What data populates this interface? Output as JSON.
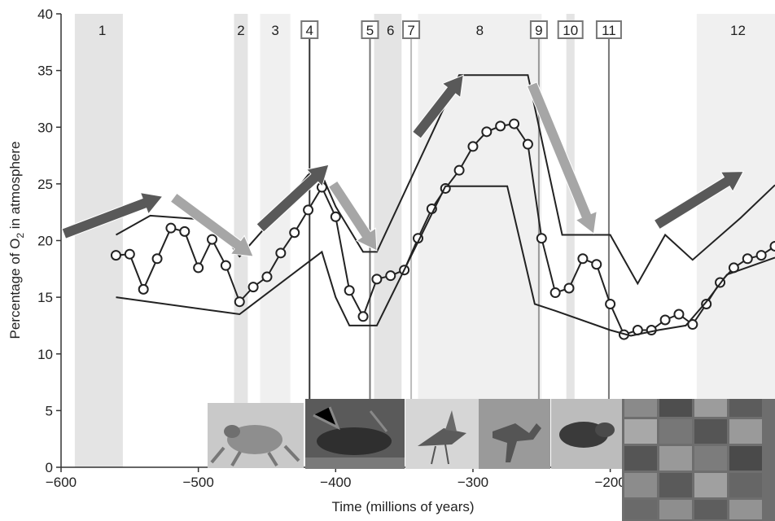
{
  "chart_data": {
    "type": "line",
    "title": "",
    "xlabel": "Time (millions of years)",
    "ylabel": "Percentage of O",
    "ylabel_subscript": "2",
    "ylabel_suffix": " in atmosphere",
    "xlim": [
      -600,
      -80
    ],
    "ylim": [
      0,
      40
    ],
    "x_ticks": [
      -600,
      -500,
      -400,
      -300,
      -200
    ],
    "y_ticks": [
      0,
      5,
      10,
      15,
      20,
      25,
      30,
      35,
      40
    ],
    "x_tick_labels": [
      "−600",
      "−500",
      "−400",
      "−300",
      "−200"
    ],
    "y_tick_labels": [
      "0",
      "5",
      "10",
      "15",
      "20",
      "25",
      "30",
      "35",
      "40"
    ],
    "grid": false,
    "colors": {
      "band": "#e4e4e4",
      "band_light": "#f0f0f0",
      "line": "#222222",
      "arrow_dark": "#595959",
      "arrow_light": "#a6a6a6",
      "marker_fill": "#ffffff"
    },
    "bands": [
      {
        "label": "1",
        "x0": -590,
        "x1": -555,
        "shade": "band"
      },
      {
        "label": "2",
        "x0": -474,
        "x1": -464,
        "shade": "band"
      },
      {
        "label": "3",
        "x0": -455,
        "x1": -433,
        "shade": "band_light"
      },
      {
        "label": "6",
        "x0": -372,
        "x1": -352,
        "shade": "band"
      },
      {
        "label": "8",
        "x0": -340,
        "x1": -250,
        "shade": "band_light"
      },
      {
        "label": "10",
        "x0": -232,
        "x1": -226,
        "shade": "band"
      },
      {
        "label": "12",
        "x0": -137,
        "x1": -80,
        "shade": "band_light"
      }
    ],
    "event_lines": [
      {
        "label": "4",
        "x": -419,
        "boxed": true,
        "color": "#333333"
      },
      {
        "label": "5",
        "x": -375,
        "boxed": true,
        "color": "#777777"
      },
      {
        "label": "7",
        "x": -345,
        "boxed": false,
        "color": "#bbbbbb"
      },
      {
        "label": "9",
        "x": -252,
        "boxed": true,
        "color": "#999999"
      },
      {
        "label": "11",
        "x": -201,
        "boxed": true,
        "color": "#777777"
      }
    ],
    "event_labels": [
      {
        "text": "1",
        "x": -570,
        "boxed": false
      },
      {
        "text": "2",
        "x": -469,
        "boxed": false
      },
      {
        "text": "3",
        "x": -444,
        "boxed": false
      },
      {
        "text": "4",
        "x": -419,
        "boxed": true
      },
      {
        "text": "5",
        "x": -375,
        "boxed": true
      },
      {
        "text": "6",
        "x": -360,
        "boxed": false
      },
      {
        "text": "7",
        "x": -345,
        "boxed": true
      },
      {
        "text": "8",
        "x": -295,
        "boxed": false
      },
      {
        "text": "9",
        "x": -252,
        "boxed": true
      },
      {
        "text": "10",
        "x": -229,
        "boxed": true
      },
      {
        "text": "11",
        "x": -201,
        "boxed": true
      },
      {
        "text": "12",
        "x": -107,
        "boxed": false
      }
    ],
    "series": [
      {
        "role": "mean",
        "marker": "circle",
        "x": [
          -560,
          -550,
          -540,
          -530,
          -520,
          -510,
          -500,
          -490,
          -480,
          -470,
          -460,
          -450,
          -440,
          -430,
          -420,
          -410,
          -400,
          -390,
          -380,
          -370,
          -360,
          -350,
          -340,
          -330,
          -320,
          -310,
          -300,
          -290,
          -280,
          -270,
          -260,
          -250,
          -240,
          -230,
          -220,
          -210,
          -200,
          -190,
          -180,
          -170,
          -160,
          -150,
          -140,
          -130,
          -120,
          -110,
          -100,
          -90,
          -80
        ],
        "y": [
          18.7,
          18.8,
          15.7,
          18.4,
          21.1,
          20.8,
          17.6,
          20.1,
          17.8,
          14.6,
          15.9,
          16.8,
          18.9,
          20.7,
          22.7,
          24.7,
          22.1,
          15.6,
          13.3,
          16.6,
          16.9,
          17.4,
          20.2,
          22.8,
          24.6,
          26.2,
          28.3,
          29.6,
          30.1,
          30.3,
          28.5,
          20.2,
          15.4,
          15.8,
          18.4,
          17.9,
          14.4,
          11.7,
          12.1,
          12.1,
          13.0,
          13.5,
          12.6,
          14.4,
          16.3,
          17.6,
          18.4,
          18.7,
          19.5
        ]
      },
      {
        "role": "upper",
        "x": [
          -560,
          -535,
          -490,
          -470,
          -445,
          -420,
          -410,
          -400,
          -380,
          -370,
          -310,
          -295,
          -260,
          -235,
          -210,
          -200,
          -180,
          -160,
          -140,
          -105,
          -80
        ],
        "y": [
          20.5,
          22.2,
          21.8,
          18.6,
          22.0,
          25.8,
          25.8,
          23.0,
          19.0,
          19.0,
          34.6,
          34.6,
          34.6,
          20.5,
          20.5,
          20.5,
          16.2,
          20.5,
          18.3,
          22.0,
          24.9
        ]
      },
      {
        "role": "lower",
        "x": [
          -560,
          -470,
          -410,
          -400,
          -390,
          -370,
          -320,
          -305,
          -290,
          -275,
          -255,
          -240,
          -200,
          -185,
          -165,
          -145,
          -130,
          -115,
          -80
        ],
        "y": [
          15.0,
          13.5,
          19.0,
          15.0,
          12.5,
          12.5,
          24.8,
          24.8,
          24.8,
          24.8,
          14.4,
          13.8,
          12.1,
          11.6,
          12.1,
          12.5,
          14.6,
          17.0,
          18.5
        ]
      }
    ],
    "arrows": [
      {
        "shade": "arrow_dark",
        "from": [
          -598,
          20.6
        ],
        "to": [
          -526,
          23.9
        ]
      },
      {
        "shade": "arrow_light",
        "from": [
          -518,
          23.8
        ],
        "to": [
          -460,
          18.6
        ]
      },
      {
        "shade": "arrow_dark",
        "from": [
          -455,
          21.1
        ],
        "to": [
          -405,
          26.7
        ]
      },
      {
        "shade": "arrow_light",
        "from": [
          -402,
          25.0
        ],
        "to": [
          -370,
          19.1
        ]
      },
      {
        "shade": "arrow_dark",
        "from": [
          -341,
          29.3
        ],
        "to": [
          -307,
          34.6
        ]
      },
      {
        "shade": "arrow_light",
        "from": [
          -257,
          33.8
        ],
        "to": [
          -212,
          20.6
        ]
      },
      {
        "shade": "arrow_dark",
        "from": [
          -166,
          21.4
        ],
        "to": [
          -103,
          26.1
        ]
      }
    ]
  }
}
